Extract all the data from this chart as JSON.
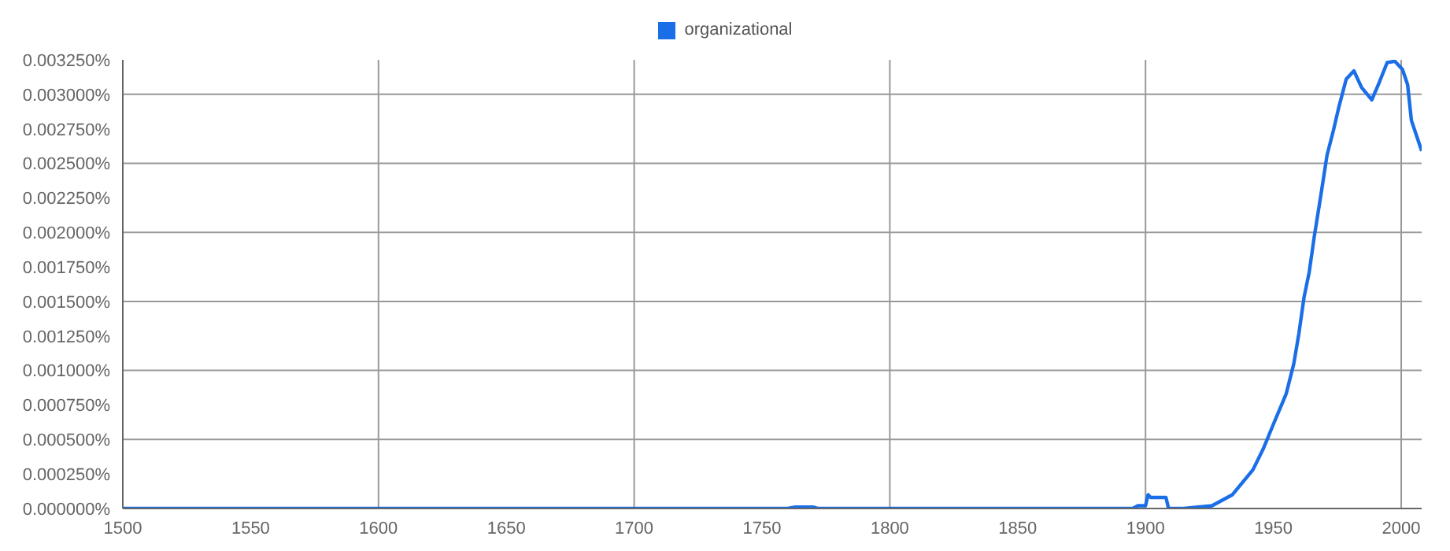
{
  "chart_data": {
    "type": "line",
    "legend": "top",
    "grid": true,
    "marker": "none",
    "line_style": "solid",
    "xlim": [
      1500,
      2008
    ],
    "xticks": [
      1500,
      1550,
      1600,
      1650,
      1700,
      1750,
      1800,
      1850,
      1900,
      1950,
      2000
    ],
    "ylim": [
      0,
      0.00325
    ],
    "yticks": [
      {
        "value": 0,
        "label": "0.000000%"
      },
      {
        "value": 0.00025,
        "label": "0.000250%"
      },
      {
        "value": 0.0005,
        "label": "0.000500%"
      },
      {
        "value": 0.00075,
        "label": "0.000750%"
      },
      {
        "value": 0.001,
        "label": "0.001000%"
      },
      {
        "value": 0.00125,
        "label": "0.001250%"
      },
      {
        "value": 0.0015,
        "label": "0.001500%"
      },
      {
        "value": 0.00175,
        "label": "0.001750%"
      },
      {
        "value": 0.002,
        "label": "0.002000%"
      },
      {
        "value": 0.00225,
        "label": "0.002250%"
      },
      {
        "value": 0.0025,
        "label": "0.002500%"
      },
      {
        "value": 0.00275,
        "label": "0.002750%"
      },
      {
        "value": 0.003,
        "label": "0.003000%"
      },
      {
        "value": 0.00325,
        "label": "0.003250%"
      }
    ],
    "series": [
      {
        "name": "organizational",
        "color": "#1a6ee8",
        "x": [
          1500,
          1760,
          1763,
          1770,
          1772,
          1895,
          1897,
          1900,
          1901,
          1902,
          1908,
          1909,
          1915,
          1926,
          1934,
          1942,
          1946,
          1950,
          1955,
          1958,
          1960,
          1962,
          1964,
          1966,
          1968.5,
          1971,
          1973.5,
          1975.5,
          1978.5,
          1981.5,
          1984.5,
          1988.5,
          1991.5,
          1994.5,
          1997.5,
          2000.5,
          2002.5,
          2004,
          2008
        ],
        "values": [
          0,
          0,
          1e-05,
          1e-05,
          0,
          0,
          2e-05,
          2e-05,
          0.0001,
          8e-05,
          8e-05,
          0,
          0,
          2e-05,
          0.0001,
          0.00028,
          0.00043,
          0.00061,
          0.00083,
          0.00105,
          0.00127,
          0.00153,
          0.00171,
          0.00197,
          0.00226,
          0.00256,
          0.00274,
          0.0029,
          0.00311,
          0.00317,
          0.00305,
          0.00296,
          0.00309,
          0.00323,
          0.00324,
          0.00318,
          0.00307,
          0.00281,
          0.00259
        ]
      }
    ]
  }
}
